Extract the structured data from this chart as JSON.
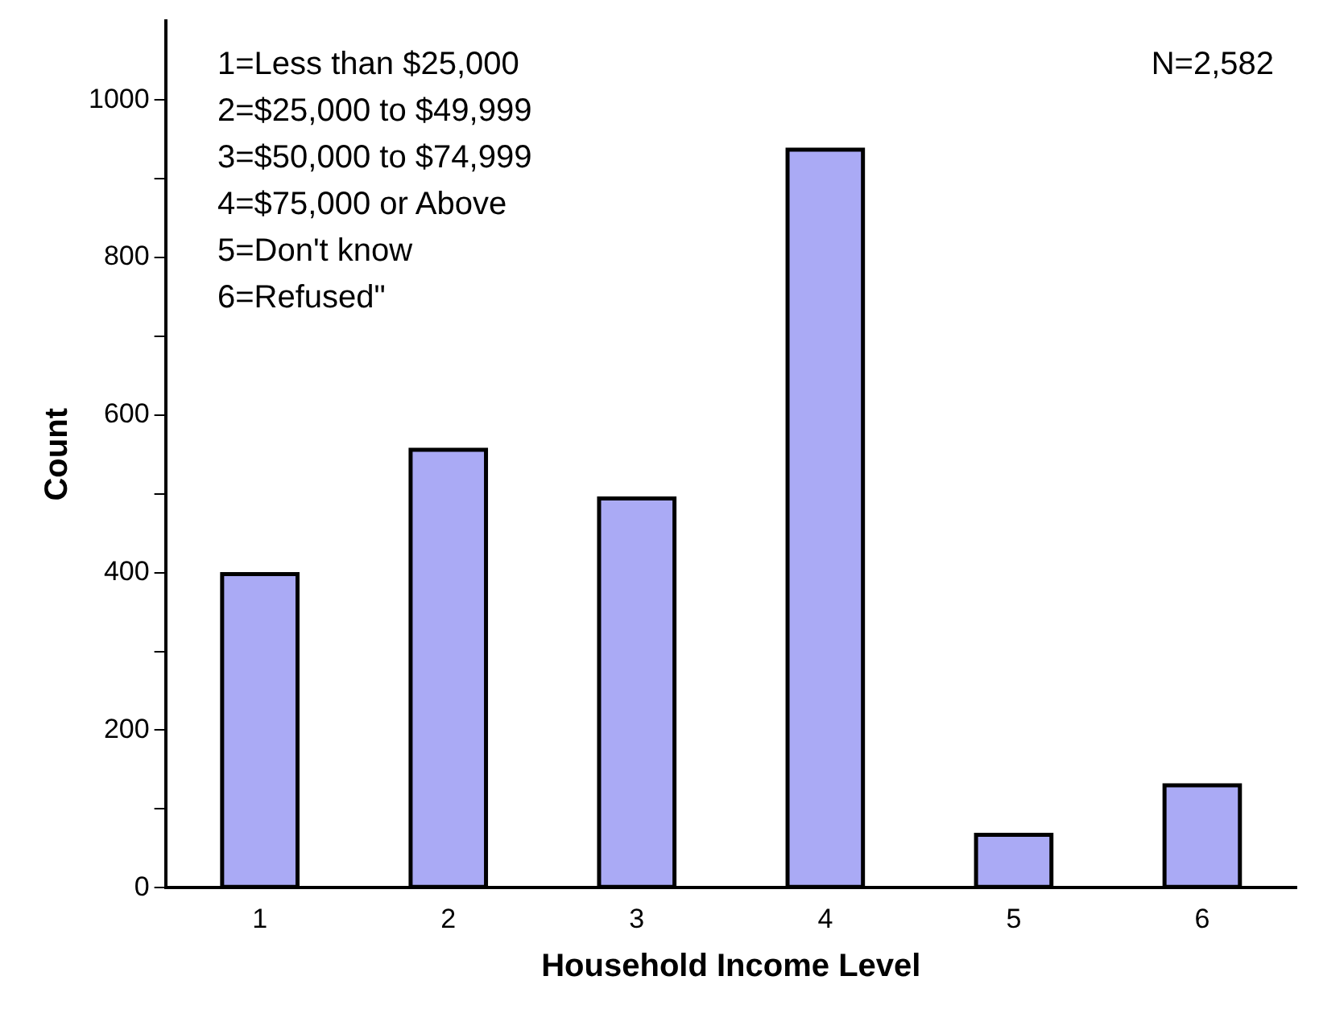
{
  "chart_data": {
    "type": "bar",
    "xlabel": "Household Income Level",
    "ylabel": "Count",
    "categories": [
      "1",
      "2",
      "3",
      "4",
      "5",
      "6"
    ],
    "values": [
      398,
      556,
      494,
      937,
      67,
      130
    ],
    "color": "#aaaaf5",
    "ylim": [
      0,
      1100
    ],
    "yticks": [
      0,
      {
        "value": 100,
        "label": null
      },
      200,
      {
        "value": 300,
        "label": null
      },
      400,
      {
        "value": 500,
        "label": null
      },
      600,
      {
        "value": 700,
        "label": null
      },
      800,
      {
        "value": 900,
        "label": null
      },
      1000
    ],
    "grid": false,
    "legend": false,
    "annotations": [
      "1=Less than $25,000\n2=$25,000 to $49,999\n3=$50,000 to $74,999\n4=$75,000 or Above\n5=Don't know\n6=Refused\"",
      "N=2,582"
    ]
  }
}
